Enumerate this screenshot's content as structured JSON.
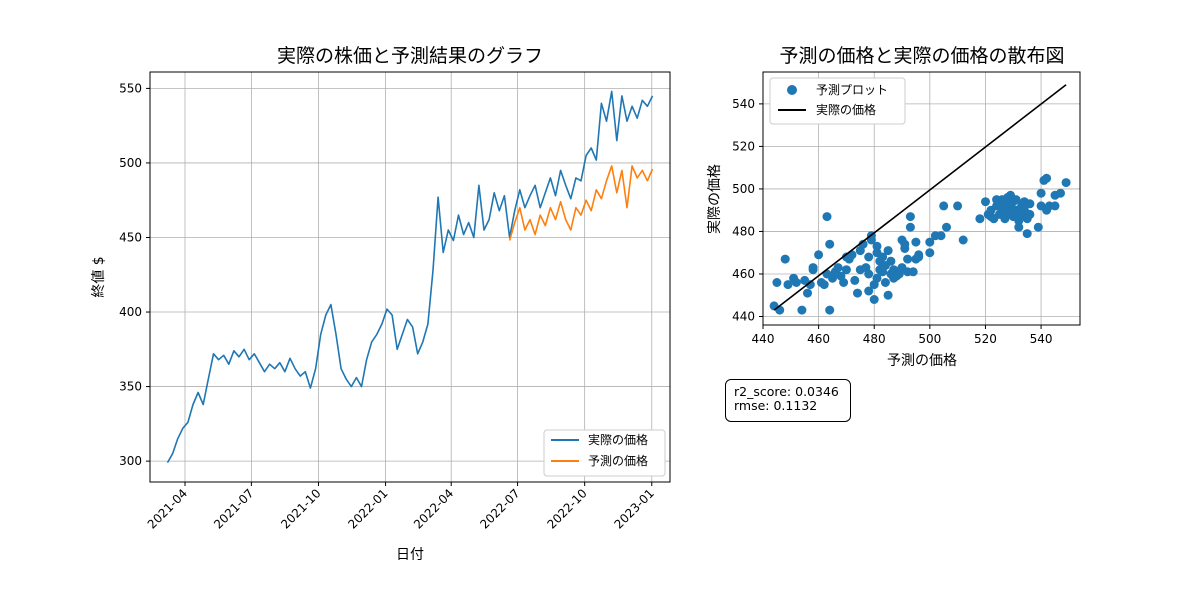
{
  "chart_data": [
    {
      "type": "line",
      "title": "実際の株価と予測結果のグラフ",
      "xlabel": "日付",
      "ylabel": "終値 $",
      "ylim": [
        286,
        561
      ],
      "xlim": [
        "2021-02-12",
        "2023-01-26"
      ],
      "yticks": [
        300,
        350,
        400,
        450,
        500,
        550
      ],
      "xticks": [
        "2021-04",
        "2021-07",
        "2021-10",
        "2022-01",
        "2022-04",
        "2022-07",
        "2022-10",
        "2023-01"
      ],
      "grid": true,
      "legend_position": "lower-right",
      "series": [
        {
          "name": "実際の価格",
          "color": "#1f77b4",
          "points": [
            [
              "2021-03-08",
              299
            ],
            [
              "2021-03-15",
              305
            ],
            [
              "2021-03-22",
              315
            ],
            [
              "2021-03-29",
              322
            ],
            [
              "2021-04-05",
              326
            ],
            [
              "2021-04-12",
              338
            ],
            [
              "2021-04-19",
              346
            ],
            [
              "2021-04-26",
              338
            ],
            [
              "2021-05-03",
              355
            ],
            [
              "2021-05-10",
              372
            ],
            [
              "2021-05-17",
              368
            ],
            [
              "2021-05-24",
              371
            ],
            [
              "2021-05-31",
              365
            ],
            [
              "2021-06-07",
              374
            ],
            [
              "2021-06-14",
              370
            ],
            [
              "2021-06-21",
              375
            ],
            [
              "2021-06-28",
              368
            ],
            [
              "2021-07-05",
              372
            ],
            [
              "2021-07-12",
              366
            ],
            [
              "2021-07-19",
              360
            ],
            [
              "2021-07-26",
              365
            ],
            [
              "2021-08-02",
              362
            ],
            [
              "2021-08-09",
              366
            ],
            [
              "2021-08-16",
              360
            ],
            [
              "2021-08-23",
              369
            ],
            [
              "2021-08-30",
              362
            ],
            [
              "2021-09-06",
              357
            ],
            [
              "2021-09-13",
              360
            ],
            [
              "2021-09-20",
              349
            ],
            [
              "2021-09-27",
              362
            ],
            [
              "2021-10-04",
              385
            ],
            [
              "2021-10-11",
              398
            ],
            [
              "2021-10-18",
              405
            ],
            [
              "2021-10-25",
              385
            ],
            [
              "2021-11-01",
              362
            ],
            [
              "2021-11-08",
              355
            ],
            [
              "2021-11-15",
              350
            ],
            [
              "2021-11-22",
              356
            ],
            [
              "2021-11-29",
              350
            ],
            [
              "2021-12-06",
              368
            ],
            [
              "2021-12-13",
              380
            ],
            [
              "2021-12-20",
              385
            ],
            [
              "2021-12-27",
              392
            ],
            [
              "2022-01-03",
              402
            ],
            [
              "2022-01-10",
              398
            ],
            [
              "2022-01-17",
              375
            ],
            [
              "2022-01-24",
              385
            ],
            [
              "2022-01-31",
              395
            ],
            [
              "2022-02-07",
              390
            ],
            [
              "2022-02-14",
              372
            ],
            [
              "2022-02-21",
              380
            ],
            [
              "2022-02-28",
              392
            ],
            [
              "2022-03-07",
              428
            ],
            [
              "2022-03-14",
              477
            ],
            [
              "2022-03-21",
              440
            ],
            [
              "2022-03-28",
              455
            ],
            [
              "2022-04-04",
              448
            ],
            [
              "2022-04-11",
              465
            ],
            [
              "2022-04-18",
              452
            ],
            [
              "2022-04-25",
              460
            ],
            [
              "2022-05-02",
              450
            ],
            [
              "2022-05-09",
              485
            ],
            [
              "2022-05-16",
              455
            ],
            [
              "2022-05-23",
              462
            ],
            [
              "2022-05-30",
              480
            ],
            [
              "2022-06-06",
              468
            ],
            [
              "2022-06-13",
              478
            ],
            [
              "2022-06-20",
              450
            ],
            [
              "2022-06-27",
              468
            ],
            [
              "2022-07-04",
              482
            ],
            [
              "2022-07-11",
              470
            ],
            [
              "2022-07-18",
              478
            ],
            [
              "2022-07-25",
              485
            ],
            [
              "2022-08-01",
              470
            ],
            [
              "2022-08-08",
              480
            ],
            [
              "2022-08-15",
              490
            ],
            [
              "2022-08-22",
              478
            ],
            [
              "2022-08-29",
              495
            ],
            [
              "2022-09-05",
              485
            ],
            [
              "2022-09-12",
              476
            ],
            [
              "2022-09-19",
              490
            ],
            [
              "2022-09-26",
              488
            ],
            [
              "2022-10-03",
              505
            ],
            [
              "2022-10-10",
              510
            ],
            [
              "2022-10-17",
              502
            ],
            [
              "2022-10-24",
              540
            ],
            [
              "2022-10-31",
              528
            ],
            [
              "2022-11-07",
              548
            ],
            [
              "2022-11-14",
              515
            ],
            [
              "2022-11-21",
              545
            ],
            [
              "2022-11-28",
              528
            ],
            [
              "2022-12-05",
              538
            ],
            [
              "2022-12-12",
              530
            ],
            [
              "2022-12-19",
              542
            ],
            [
              "2022-12-26",
              538
            ],
            [
              "2023-01-02",
              545
            ]
          ]
        },
        {
          "name": "予測の価格",
          "color": "#ff7f0e",
          "points": [
            [
              "2022-06-20",
              448
            ],
            [
              "2022-06-27",
              460
            ],
            [
              "2022-07-04",
              470
            ],
            [
              "2022-07-11",
              455
            ],
            [
              "2022-07-18",
              462
            ],
            [
              "2022-07-25",
              452
            ],
            [
              "2022-08-01",
              465
            ],
            [
              "2022-08-08",
              458
            ],
            [
              "2022-08-15",
              470
            ],
            [
              "2022-08-22",
              462
            ],
            [
              "2022-08-29",
              474
            ],
            [
              "2022-09-05",
              462
            ],
            [
              "2022-09-12",
              455
            ],
            [
              "2022-09-19",
              470
            ],
            [
              "2022-09-26",
              465
            ],
            [
              "2022-10-03",
              475
            ],
            [
              "2022-10-10",
              468
            ],
            [
              "2022-10-17",
              482
            ],
            [
              "2022-10-24",
              476
            ],
            [
              "2022-10-31",
              488
            ],
            [
              "2022-11-07",
              498
            ],
            [
              "2022-11-14",
              480
            ],
            [
              "2022-11-21",
              495
            ],
            [
              "2022-11-28",
              470
            ],
            [
              "2022-12-05",
              498
            ],
            [
              "2022-12-12",
              490
            ],
            [
              "2022-12-19",
              495
            ],
            [
              "2022-12-26",
              488
            ],
            [
              "2023-01-02",
              496
            ]
          ]
        }
      ]
    },
    {
      "type": "scatter",
      "title": "予測の価格と実際の価格の散布図",
      "xlabel": "予測の価格",
      "ylabel": "実際の価格",
      "xlim": [
        440,
        554
      ],
      "ylim": [
        436,
        555
      ],
      "xticks": [
        440,
        460,
        480,
        500,
        520,
        540
      ],
      "yticks": [
        440,
        460,
        480,
        500,
        520,
        540
      ],
      "grid": true,
      "legend_position": "upper-left",
      "series": [
        {
          "name": "予測プロット",
          "color": "#1f77b4",
          "points": [
            [
              444,
              445
            ],
            [
              445,
              456
            ],
            [
              446,
              443
            ],
            [
              448,
              467
            ],
            [
              449,
              455
            ],
            [
              451,
              458
            ],
            [
              452,
              456
            ],
            [
              454,
              443
            ],
            [
              455,
              457
            ],
            [
              456,
              451
            ],
            [
              457,
              455
            ],
            [
              458,
              462
            ],
            [
              458,
              463
            ],
            [
              460,
              469
            ],
            [
              461,
              456
            ],
            [
              462,
              455
            ],
            [
              463,
              487
            ],
            [
              463,
              460
            ],
            [
              464,
              474
            ],
            [
              464,
              443
            ],
            [
              465,
              458
            ],
            [
              466,
              461
            ],
            [
              467,
              463
            ],
            [
              468,
              459
            ],
            [
              469,
              456
            ],
            [
              470,
              462
            ],
            [
              470,
              468
            ],
            [
              471,
              467
            ],
            [
              472,
              469
            ],
            [
              473,
              457
            ],
            [
              474,
              451
            ],
            [
              475,
              462
            ],
            [
              475,
              471
            ],
            [
              476,
              474
            ],
            [
              477,
              463
            ],
            [
              478,
              460
            ],
            [
              478,
              468
            ],
            [
              478,
              452
            ],
            [
              479,
              476
            ],
            [
              479,
              478
            ],
            [
              480,
              455
            ],
            [
              480,
              448
            ],
            [
              481,
              458
            ],
            [
              481,
              470
            ],
            [
              481,
              473
            ],
            [
              482,
              466
            ],
            [
              482,
              462
            ],
            [
              483,
              468
            ],
            [
              483,
              461
            ],
            [
              484,
              456
            ],
            [
              484,
              464
            ],
            [
              485,
              450
            ],
            [
              485,
              471
            ],
            [
              486,
              460
            ],
            [
              486,
              466
            ],
            [
              487,
              458
            ],
            [
              487,
              462
            ],
            [
              488,
              459
            ],
            [
              489,
              460
            ],
            [
              490,
              476
            ],
            [
              490,
              463
            ],
            [
              491,
              472
            ],
            [
              491,
              474
            ],
            [
              492,
              461
            ],
            [
              492,
              467
            ],
            [
              493,
              482
            ],
            [
              493,
              487
            ],
            [
              494,
              461
            ],
            [
              495,
              475
            ],
            [
              495,
              467
            ],
            [
              496,
              469
            ],
            [
              496,
              468
            ],
            [
              500,
              470
            ],
            [
              500,
              475
            ],
            [
              502,
              478
            ],
            [
              504,
              478
            ],
            [
              505,
              492
            ],
            [
              506,
              482
            ],
            [
              510,
              492
            ],
            [
              512,
              476
            ],
            [
              518,
              486
            ],
            [
              520,
              494
            ],
            [
              521,
              488
            ],
            [
              522,
              490
            ],
            [
              522,
              487
            ],
            [
              523,
              486
            ],
            [
              524,
              492
            ],
            [
              524,
              495
            ],
            [
              525,
              488
            ],
            [
              525,
              494
            ],
            [
              526,
              495
            ],
            [
              526,
              490
            ],
            [
              527,
              486
            ],
            [
              527,
              493
            ],
            [
              528,
              496
            ],
            [
              528,
              489
            ],
            [
              529,
              497
            ],
            [
              529,
              491
            ],
            [
              530,
              494
            ],
            [
              530,
              487
            ],
            [
              531,
              490
            ],
            [
              531,
              495
            ],
            [
              532,
              485
            ],
            [
              532,
              482
            ],
            [
              533,
              492
            ],
            [
              533,
              488
            ],
            [
              534,
              494
            ],
            [
              534,
              490
            ],
            [
              535,
              479
            ],
            [
              535,
              486
            ],
            [
              536,
              493
            ],
            [
              536,
              488
            ],
            [
              539,
              482
            ],
            [
              540,
              492
            ],
            [
              540,
              498
            ],
            [
              541,
              504
            ],
            [
              542,
              490
            ],
            [
              542,
              505
            ],
            [
              543,
              492
            ],
            [
              545,
              492
            ],
            [
              545,
              497
            ],
            [
              547,
              498
            ],
            [
              549,
              503
            ]
          ]
        },
        {
          "name": "実際の価格",
          "color": "#000000",
          "line": [
            [
              444,
              443
            ],
            [
              549,
              549
            ]
          ]
        }
      ],
      "annotation": {
        "r2_label": "r2_score: 0.0346",
        "rmse_label": "rmse: 0.1132"
      }
    }
  ]
}
